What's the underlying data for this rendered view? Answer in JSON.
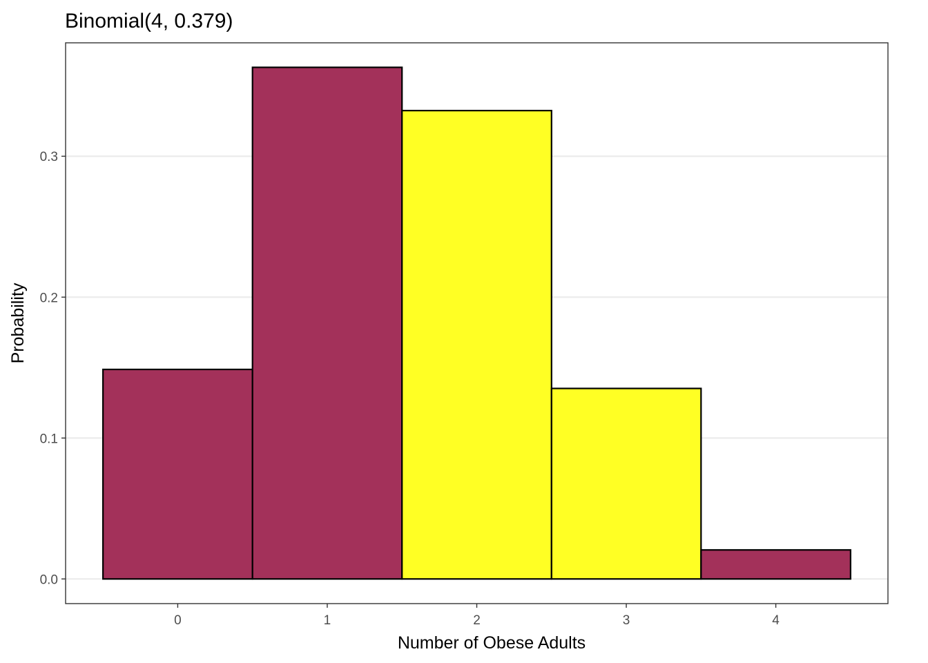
{
  "chart_data": {
    "type": "bar",
    "title": "Binomial(4, 0.379)",
    "xlabel": "Number of Obese Adults",
    "ylabel": "Probability",
    "categories": [
      "0",
      "1",
      "2",
      "3",
      "4"
    ],
    "x": [
      0,
      1,
      2,
      3,
      4
    ],
    "values": [
      0.1487,
      0.3631,
      0.3324,
      0.1352,
      0.0206
    ],
    "highlighted": [
      false,
      false,
      true,
      true,
      false
    ],
    "bar_width": 1,
    "xlim": [
      -0.75,
      4.75
    ],
    "ylim": [
      -0.0175,
      0.3805
    ],
    "yticks": [
      0.0,
      0.1,
      0.2,
      0.3
    ],
    "ytick_labels": [
      "0.0",
      "0.1",
      "0.2",
      "0.3"
    ],
    "xticks": [
      0,
      1,
      2,
      3,
      4
    ],
    "grid": "horizontal",
    "legend": "none",
    "colors": {
      "default_fill": "#a3315a",
      "highlight_fill": "#ffff24",
      "bar_outline": "#000000",
      "grid": "#ebebeb",
      "panel_border": "#333333"
    }
  }
}
